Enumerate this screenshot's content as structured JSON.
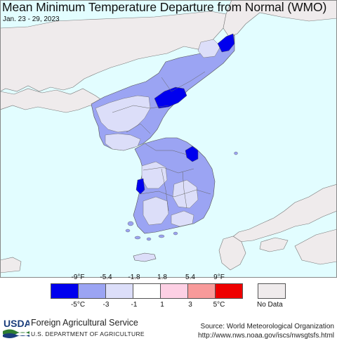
{
  "header": {
    "title": "Mean Minimum Temperature Departure from Normal (WMO)",
    "dates": "Jan. 23 - 29, 2023"
  },
  "legend": {
    "fahrenheit_ticks": [
      "-9°F",
      "-5.4",
      "-1.8",
      "1.8",
      "5.4",
      "9°F"
    ],
    "celsius_ticks": [
      "-5°C",
      "-3",
      "-1",
      "1",
      "3",
      "5°C"
    ],
    "bins": [
      {
        "color": "#0000ee",
        "range": "< -5°C"
      },
      {
        "color": "#9ba4f3",
        "range": "-5 to -3"
      },
      {
        "color": "#dcdef9",
        "range": "-3 to -1"
      },
      {
        "color": "#ffffff",
        "range": "-1 to 1"
      },
      {
        "color": "#fdd0e4",
        "range": "1 to 3"
      },
      {
        "color": "#f89a9a",
        "range": "3 to 5"
      },
      {
        "color": "#ee0000",
        "range": "> 5°C"
      }
    ],
    "no_data_label": "No Data",
    "no_data_color": "#efebec"
  },
  "colors": {
    "water": "#e2fdff",
    "land_no_data": "#efebec",
    "border": "#555555"
  },
  "footer": {
    "logo_text": "USDA",
    "agency": "Foreign Agricultural Service",
    "department": "U.S. DEPARTMENT OF AGRICULTURE",
    "source": "Source: World Meteorological Organization",
    "url": "http://www.nws.noaa.gov/iscs/nwsgtsfs.html"
  }
}
